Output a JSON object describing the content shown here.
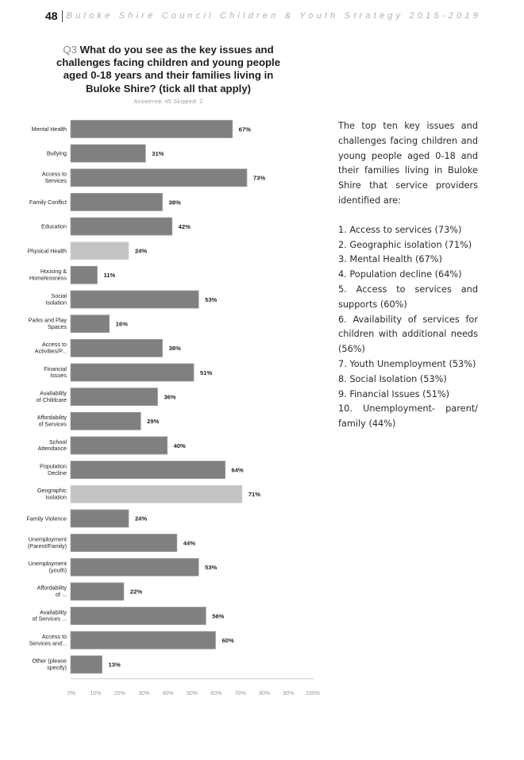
{
  "header": {
    "page_number": "48",
    "document_title": "Buloke Shire Council Children & Youth Strategy 2015-2019"
  },
  "chart_data": {
    "type": "bar",
    "orientation": "horizontal",
    "question_prefix": "Q3",
    "title": "What do you see as the key issues and challenges facing children and young people aged 0-18 years and their families living in Buloke Shire? (tick all that apply)",
    "subtitle": "Answered: 45   Skipped: 2",
    "xlabel": "",
    "ylabel": "",
    "xlim": [
      0,
      100
    ],
    "x_ticks": [
      "0%",
      "10%",
      "20%",
      "30%",
      "40%",
      "50%",
      "60%",
      "70%",
      "80%",
      "90%",
      "100%"
    ],
    "grid": false,
    "legend": "none",
    "bar_color": "#808080",
    "highlight_color": "#c4c4c4",
    "categories": [
      [
        "Mental Health"
      ],
      [
        "Bullying"
      ],
      [
        "Access to",
        "Services"
      ],
      [
        "Family Conflict"
      ],
      [
        "Education"
      ],
      [
        "Physical Health"
      ],
      [
        "Housing &",
        "Homelessness"
      ],
      [
        "Social",
        "Isolation"
      ],
      [
        "Parks and Play",
        "Spaces"
      ],
      [
        "Access to",
        "Activities/P..."
      ],
      [
        "Financial",
        "Issues"
      ],
      [
        "Availability",
        "of Childcare"
      ],
      [
        "Affordability",
        "of Services"
      ],
      [
        "School",
        "Attendance"
      ],
      [
        "Population",
        "Decline"
      ],
      [
        "Geographic",
        "Isolation"
      ],
      [
        "Family Violence"
      ],
      [
        "Unemployment",
        "(Parent/Family)"
      ],
      [
        "Unemployment",
        "(youth)"
      ],
      [
        "Affordability",
        "of ..."
      ],
      [
        "Availability",
        "of Services ..."
      ],
      [
        "Access to",
        "Services and..."
      ],
      [
        "Other (please",
        "specify)"
      ]
    ],
    "values": [
      67,
      31,
      73,
      38,
      42,
      24,
      11,
      53,
      16,
      38,
      51,
      36,
      29,
      40,
      64,
      71,
      24,
      44,
      53,
      22,
      56,
      60,
      13
    ],
    "value_labels": [
      "67%",
      "31%",
      "73%",
      "38%",
      "42%",
      "24%",
      "11%",
      "53%",
      "16%",
      "38%",
      "51%",
      "36%",
      "29%",
      "40%",
      "64%",
      "71%",
      "24%",
      "44%",
      "53%",
      "22%",
      "56%",
      "60%",
      "13%"
    ],
    "highlighted": [
      false,
      false,
      false,
      false,
      false,
      true,
      false,
      false,
      false,
      false,
      false,
      false,
      false,
      false,
      false,
      true,
      false,
      false,
      false,
      false,
      false,
      false,
      false
    ]
  },
  "side_text": {
    "intro": "The top ten key issues and challenges facing children and young people aged 0-18 and their families living in Buloke Shire that service providers identified are:",
    "items": [
      "1. Access to services (73%)",
      "2. Geographic isolation (71%)",
      "3. Mental Health (67%)",
      "4. Population decline (64%)",
      "5.  Access  to  services  and supports (60%)",
      "6. Availability of services for children with additional needs (56%)",
      "7. Youth Unemployment (53%)",
      "8. Social Isolation (53%)",
      "9. Financial Issues (51%)",
      "10.  Unemployment-  parent/ family  (44%)"
    ]
  }
}
